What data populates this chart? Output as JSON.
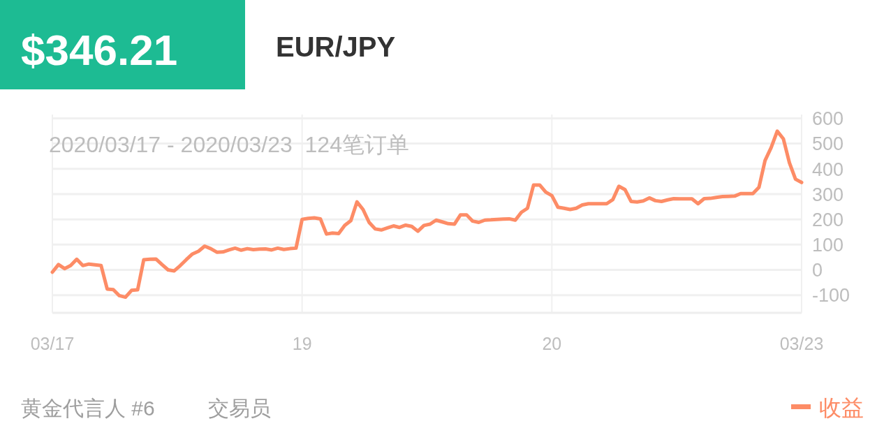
{
  "chart_data": {
    "type": "line",
    "title": "$346.21",
    "subtitle": "EUR/JPY",
    "annotations": [
      "2020/03/17 - 2020/03/23  124笔订单",
      "黄金代言人 #6",
      "交易员"
    ],
    "categories": [
      "03/17",
      null,
      null,
      null,
      null,
      null,
      null,
      null,
      null,
      null,
      null,
      null,
      null,
      null,
      null,
      null,
      null,
      null,
      null,
      null,
      null,
      null,
      null,
      null,
      null,
      null,
      null,
      null,
      null,
      null,
      null,
      null,
      null,
      null,
      null,
      null,
      null,
      null,
      null,
      null,
      null,
      "19",
      null,
      null,
      null,
      null,
      null,
      null,
      null,
      null,
      null,
      null,
      null,
      null,
      null,
      null,
      null,
      null,
      null,
      null,
      null,
      null,
      null,
      null,
      null,
      null,
      null,
      null,
      null,
      null,
      null,
      null,
      null,
      null,
      null,
      null,
      null,
      null,
      null,
      null,
      null,
      null,
      "20",
      null,
      null,
      null,
      null,
      null,
      null,
      null,
      null,
      null,
      null,
      null,
      null,
      null,
      null,
      null,
      null,
      null,
      null,
      null,
      null,
      null,
      null,
      null,
      null,
      null,
      null,
      null,
      null,
      null,
      null,
      null,
      null,
      null,
      null,
      null,
      null,
      null,
      null,
      null,
      null,
      "03/23"
    ],
    "series": [
      {
        "name": "收益",
        "color": "#fd8c66",
        "values": [
          -9,
          21,
          5,
          17,
          42,
          17,
          23,
          20,
          17,
          -76,
          -78,
          -102,
          -108,
          -81,
          -79,
          40,
          42,
          43,
          21,
          0,
          -4,
          17,
          41,
          63,
          74,
          94,
          84,
          70,
          71,
          79,
          86,
          78,
          84,
          80,
          82,
          83,
          79,
          86,
          81,
          84,
          86,
          200,
          204,
          206,
          202,
          142,
          146,
          144,
          176,
          195,
          269,
          239,
          188,
          162,
          158,
          166,
          174,
          168,
          177,
          172,
          153,
          176,
          181,
          197,
          190,
          183,
          181,
          218,
          218,
          193,
          188,
          197,
          198,
          200,
          201,
          202,
          197,
          228,
          244,
          336,
          336,
          308,
          294,
          248,
          244,
          239,
          244,
          257,
          262,
          262,
          262,
          262,
          278,
          331,
          318,
          271,
          269,
          273,
          285,
          274,
          271,
          277,
          282,
          281,
          281,
          281,
          262,
          282,
          283,
          287,
          290,
          291,
          292,
          302,
          302,
          302,
          327,
          433,
          484,
          549,
          519,
          424,
          359,
          346
        ]
      }
    ],
    "ylim": [
      -170,
      615
    ],
    "yticks": [
      -100,
      0,
      100,
      200,
      300,
      400,
      500,
      600
    ],
    "grid": true,
    "legend": "bottom right",
    "line_style": "solid"
  }
}
